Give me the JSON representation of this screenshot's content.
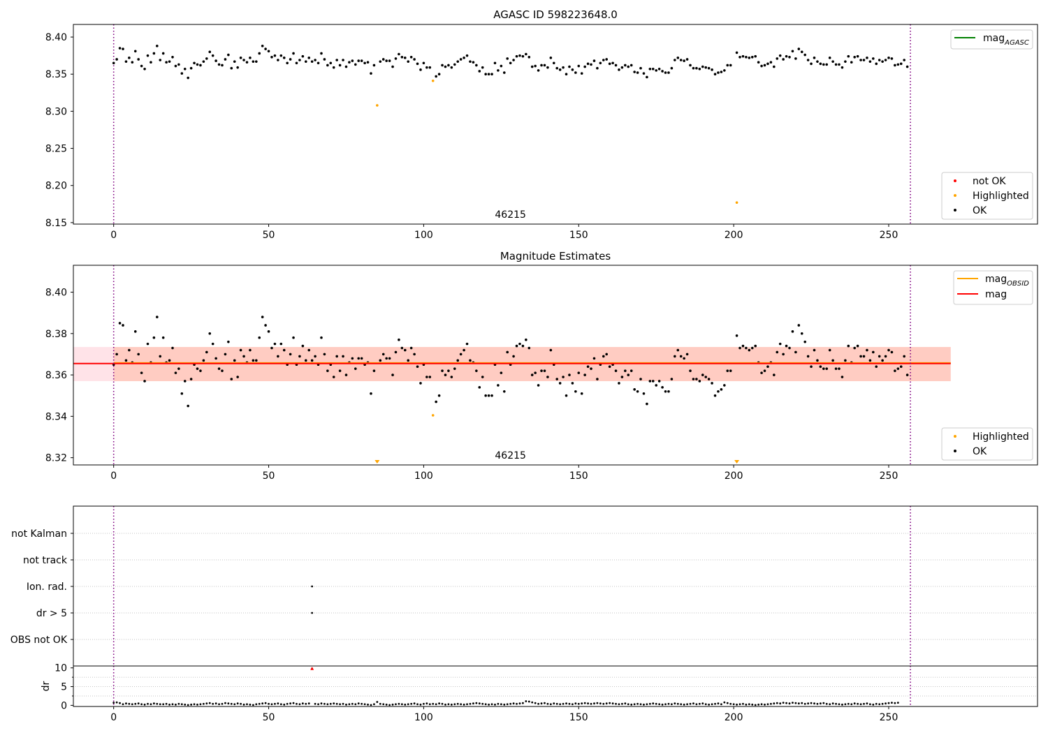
{
  "chart_data": [
    {
      "panel": "agasc",
      "type": "scatter",
      "title": "AGASC ID 598223648.0",
      "xlim": [
        -13,
        298
      ],
      "ylim": [
        8.148,
        8.417
      ],
      "xticks": [
        0,
        50,
        100,
        150,
        200,
        250
      ],
      "yticks": [
        8.15,
        8.2,
        8.25,
        8.3,
        8.35,
        8.4
      ],
      "ytick_labels": [
        "8.15",
        "8.20",
        "8.25",
        "8.30",
        "8.35",
        "8.40"
      ],
      "vlines": [
        0,
        257
      ],
      "annotation": "46215",
      "legend_top": {
        "position": "upper right",
        "entries": [
          {
            "label": "mag",
            "sub": "AGASC",
            "color": "#008000",
            "kind": "line"
          }
        ]
      },
      "legend_bottom": {
        "position": "lower right",
        "entries": [
          {
            "label": "not OK",
            "color": "#ff0000",
            "kind": "dot"
          },
          {
            "label": "Highlighted",
            "color": "#ffa500",
            "kind": "dot"
          },
          {
            "label": "OK",
            "color": "#000000",
            "kind": "dot"
          }
        ]
      },
      "series": [
        {
          "name": "OK",
          "color": "#000000",
          "x_start": 0,
          "x_step": 1,
          "values": [
            8.365,
            8.37,
            8.385,
            8.384,
            8.367,
            8.372,
            8.366,
            8.381,
            8.37,
            8.361,
            8.357,
            8.375,
            8.366,
            8.378,
            8.388,
            8.369,
            8.378,
            8.366,
            8.367,
            8.373,
            8.361,
            8.363,
            8.351,
            8.357,
            8.345,
            8.358,
            8.365,
            8.363,
            8.362,
            8.367,
            8.371,
            8.38,
            8.375,
            8.368,
            8.363,
            8.362,
            8.37,
            8.376,
            8.358,
            8.367,
            8.359,
            8.372,
            8.369,
            8.366,
            8.372,
            8.367,
            8.367,
            8.378,
            8.388,
            8.384,
            8.381,
            8.373,
            8.375,
            8.369,
            8.375,
            8.372,
            8.365,
            8.37,
            8.378,
            8.365,
            8.369,
            8.374,
            8.367,
            8.372,
            8.367,
            8.369,
            8.365,
            8.378,
            8.37,
            8.362,
            8.365,
            8.359,
            8.369,
            8.362,
            8.369,
            8.36,
            8.366,
            8.368,
            8.363,
            8.368,
            8.368,
            8.365,
            8.366,
            8.351,
            8.362,
            null,
            8.367,
            8.37,
            8.368,
            8.368,
            8.36,
            8.371,
            8.377,
            8.373,
            8.372,
            8.367,
            8.373,
            8.37,
            8.364,
            8.356,
            8.365,
            8.359,
            8.359,
            null,
            8.347,
            8.35,
            8.362,
            8.36,
            8.362,
            8.359,
            8.363,
            8.367,
            8.37,
            8.372,
            8.375,
            8.367,
            8.366,
            8.362,
            8.354,
            8.359,
            8.35,
            8.35,
            8.35,
            8.365,
            8.355,
            8.361,
            8.352,
            8.371,
            8.365,
            8.369,
            8.374,
            8.375,
            8.374,
            8.377,
            8.373,
            8.36,
            8.361,
            8.355,
            8.362,
            8.362,
            8.359,
            8.372,
            8.365,
            8.358,
            8.356,
            8.359,
            8.35,
            8.36,
            8.356,
            8.352,
            8.361,
            8.351,
            8.36,
            8.364,
            8.363,
            8.368,
            8.358,
            8.365,
            8.369,
            8.37,
            8.364,
            8.365,
            8.362,
            8.356,
            8.359,
            8.362,
            8.36,
            8.362,
            8.353,
            8.352,
            8.358,
            8.351,
            8.346,
            8.357,
            8.357,
            8.355,
            8.357,
            8.354,
            8.352,
            8.352,
            8.358,
            8.369,
            8.372,
            8.369,
            8.368,
            8.37,
            8.362,
            8.358,
            8.358,
            8.357,
            8.36,
            8.359,
            8.358,
            8.356,
            8.35,
            8.352,
            8.353,
            8.355,
            8.362,
            8.362,
            null,
            8.379,
            8.373,
            8.374,
            8.373,
            8.372,
            8.373,
            8.374,
            8.366,
            8.361,
            8.362,
            8.364,
            8.366,
            8.36,
            8.371,
            8.375,
            8.37,
            8.374,
            8.373,
            8.381,
            8.371,
            8.384,
            8.38,
            8.376,
            8.369,
            8.364,
            8.372,
            8.367,
            8.364,
            8.363,
            8.363,
            8.372,
            8.367,
            8.363,
            8.363,
            8.359,
            8.367,
            8.374,
            8.366,
            8.373,
            8.374,
            8.369,
            8.369,
            8.372,
            8.367,
            8.371,
            8.364,
            8.369,
            8.367,
            8.369,
            8.372,
            8.371,
            8.362,
            8.363,
            8.364,
            8.369,
            8.36
          ]
        },
        {
          "name": "Highlighted",
          "color": "#ffa500",
          "points": [
            [
              85,
              8.308
            ],
            [
              103,
              8.341
            ],
            [
              201,
              8.177
            ]
          ]
        }
      ]
    },
    {
      "panel": "mag",
      "type": "scatter",
      "title": "Magnitude Estimates",
      "xlim": [
        -13,
        298
      ],
      "ylim": [
        8.3165,
        8.413
      ],
      "xticks": [
        0,
        50,
        100,
        150,
        200,
        250
      ],
      "yticks": [
        8.32,
        8.34,
        8.36,
        8.38,
        8.4
      ],
      "ytick_labels": [
        "8.32",
        "8.34",
        "8.36",
        "8.38",
        "8.40"
      ],
      "vlines": [
        0,
        257
      ],
      "annotation": "46215",
      "band_outer": {
        "x": [
          -13,
          270
        ],
        "y": [
          8.357,
          8.3735
        ],
        "color": "#ffc0cb"
      },
      "band_inner": {
        "x": [
          0,
          270
        ],
        "y": [
          8.357,
          8.3735
        ],
        "color": "#ffa07a"
      },
      "hlines": [
        {
          "label": "mag",
          "sub": "OBSID",
          "y": 8.3658,
          "x": [
            0,
            270
          ],
          "color": "#ffa500"
        },
        {
          "label": "mag",
          "y": 8.3655,
          "x": [
            -13,
            270
          ],
          "color": "#ff0000"
        }
      ],
      "legend_top": {
        "position": "upper right",
        "entries": [
          {
            "label": "mag",
            "sub": "OBSID",
            "color": "#ffa500",
            "kind": "line"
          },
          {
            "label": "mag",
            "color": "#ff0000",
            "kind": "line"
          }
        ]
      },
      "legend_bottom": {
        "position": "lower right",
        "entries": [
          {
            "label": "Highlighted",
            "color": "#ffa500",
            "kind": "dot"
          },
          {
            "label": "OK",
            "color": "#000000",
            "kind": "dot"
          }
        ]
      },
      "off_scale_markers": [
        {
          "x": 85,
          "color": "#ffa500"
        },
        {
          "x": 201,
          "color": "#ffa500"
        }
      ],
      "series": [
        {
          "name": "Highlighted",
          "color": "#ffa500",
          "points": [
            [
              103,
              8.3405
            ]
          ]
        }
      ]
    },
    {
      "panel": "flags",
      "type": "scatter",
      "xlim": [
        -13,
        298
      ],
      "categories": [
        "not Kalman",
        "not track",
        "Ion. rad.",
        "dr > 5",
        "OBS not OK"
      ],
      "vlines": [
        0,
        257
      ],
      "grid": "horizontal dotted",
      "points": [
        {
          "x": 64,
          "category": "Ion. rad.",
          "color": "#000000"
        },
        {
          "x": 64,
          "category": "dr > 5",
          "color": "#000000"
        }
      ]
    },
    {
      "panel": "dr",
      "type": "scatter",
      "ylabel": "dr",
      "xlim": [
        -13,
        298
      ],
      "ylim": [
        -0.3,
        10.5
      ],
      "xticks": [
        0,
        50,
        100,
        150,
        200,
        250
      ],
      "yticks": [
        0,
        5,
        10
      ],
      "ytick_labels": [
        "0",
        "5",
        "10"
      ],
      "vlines": [
        0,
        257
      ],
      "grid": "horizontal dotted",
      "series": [
        {
          "name": "OK",
          "color": "#000000",
          "x_start": 0,
          "x_step": 1,
          "values": [
            0.7,
            0.8,
            0.6,
            0.3,
            0.5,
            0.4,
            0.3,
            0.4,
            0.5,
            0.3,
            0.2,
            0.4,
            0.3,
            0.5,
            0.4,
            0.3,
            0.3,
            0.4,
            0.2,
            0.3,
            0.2,
            0.4,
            0.3,
            0.2,
            0.1,
            0.2,
            0.3,
            0.2,
            0.3,
            0.4,
            0.5,
            0.6,
            0.4,
            0.5,
            0.3,
            0.4,
            0.6,
            0.5,
            0.4,
            0.3,
            0.5,
            0.4,
            0.2,
            0.3,
            0.2,
            0.1,
            0.3,
            0.4,
            0.5,
            0.6,
            0.4,
            0.3,
            0.4,
            0.5,
            0.3,
            0.2,
            0.4,
            0.5,
            0.6,
            0.4,
            0.3,
            0.5,
            0.4,
            0.5,
            9.8,
            0.4,
            0.3,
            0.5,
            0.4,
            0.3,
            0.4,
            0.5,
            0.4,
            0.3,
            0.4,
            0.2,
            0.3,
            0.4,
            0.3,
            0.5,
            0.4,
            0.3,
            0.2,
            0.1,
            0.3,
            0.9,
            0.4,
            0.3,
            0.2,
            0.1,
            0.2,
            0.3,
            0.4,
            0.3,
            0.2,
            0.3,
            0.4,
            0.5,
            0.3,
            0.2,
            0.4,
            0.5,
            0.3,
            0.4,
            0.3,
            0.5,
            0.4,
            0.2,
            0.3,
            0.2,
            0.3,
            0.4,
            0.3,
            0.2,
            0.3,
            0.4,
            0.5,
            0.6,
            0.5,
            0.4,
            0.3,
            0.2,
            0.3,
            0.2,
            0.4,
            0.3,
            0.2,
            0.3,
            0.4,
            0.5,
            0.4,
            0.5,
            0.6,
            1.1,
            1.0,
            0.8,
            0.6,
            0.4,
            0.5,
            0.6,
            0.4,
            0.3,
            0.5,
            0.4,
            0.3,
            0.4,
            0.5,
            0.4,
            0.3,
            0.5,
            0.4,
            0.5,
            0.6,
            0.5,
            0.4,
            0.5,
            0.6,
            0.5,
            0.4,
            0.5,
            0.6,
            0.5,
            0.4,
            0.3,
            0.4,
            0.5,
            0.3,
            0.2,
            0.3,
            0.4,
            0.3,
            0.2,
            0.3,
            0.4,
            0.5,
            0.4,
            0.3,
            0.2,
            0.3,
            0.4,
            0.3,
            0.5,
            0.4,
            0.3,
            0.2,
            0.3,
            0.4,
            0.5,
            0.3,
            0.4,
            0.5,
            0.3,
            0.2,
            0.3,
            0.4,
            0.5,
            0.3,
            0.8,
            0.6,
            0.4,
            0.3,
            0.2,
            0.3,
            0.4,
            0.2,
            0.3,
            0.2,
            0.1,
            0.2,
            0.3,
            0.2,
            0.3,
            0.4,
            0.5,
            0.6,
            0.5,
            0.7,
            0.6,
            0.5,
            0.7,
            0.6,
            0.5,
            0.6,
            0.4,
            0.5,
            0.6,
            0.5,
            0.4,
            0.5,
            0.6,
            0.4,
            0.3,
            0.5,
            0.4,
            0.3,
            0.2,
            0.3,
            0.4,
            0.3,
            0.5,
            0.4,
            0.3,
            0.4,
            0.5,
            0.3,
            0.2,
            0.4,
            0.3,
            0.4,
            0.5,
            0.6,
            0.7,
            0.6,
            0.7
          ]
        },
        {
          "name": "not OK",
          "color": "#ff0000",
          "points": [
            [
              64,
              9.8
            ]
          ]
        }
      ]
    }
  ]
}
